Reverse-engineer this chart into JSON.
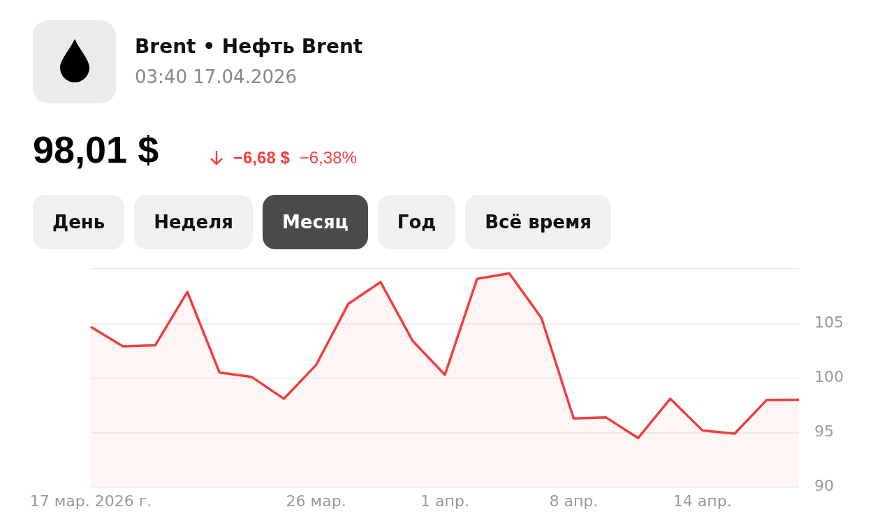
{
  "chart_data": {
    "type": "area",
    "title": "Brent • Нефть Brent",
    "subtitle": "03:40 17.04.2026",
    "annotations": [
      "98,01 $",
      "−6,68 $",
      "−6,38%",
      "День",
      "Неделя",
      "Месяц",
      "Год",
      "Всё время"
    ],
    "categories": [
      "17 мар. 2026 г.",
      null,
      null,
      null,
      null,
      null,
      null,
      "26 мар.",
      null,
      null,
      null,
      "1 апр.",
      null,
      null,
      null,
      "8 апр.",
      null,
      null,
      null,
      "14 апр.",
      null,
      null,
      null
    ],
    "series": [
      {
        "color": "#f23d3d",
        "values": [
          104.7,
          102.9,
          103.0,
          107.9,
          100.5,
          100.1,
          98.1,
          101.2,
          106.8,
          108.8,
          103.4,
          100.3,
          109.1,
          109.6,
          105.5,
          96.3,
          96.4,
          94.5,
          98.1,
          95.2,
          94.9,
          98.0,
          98.01
        ]
      }
    ],
    "ylim": [
      90,
      110
    ],
    "yticks": [
      90,
      95,
      100,
      105,
      {
        "value": 110,
        "label": null
      }
    ],
    "grid": "y",
    "legend": false,
    "marker": "none",
    "line_style": "solid"
  }
}
